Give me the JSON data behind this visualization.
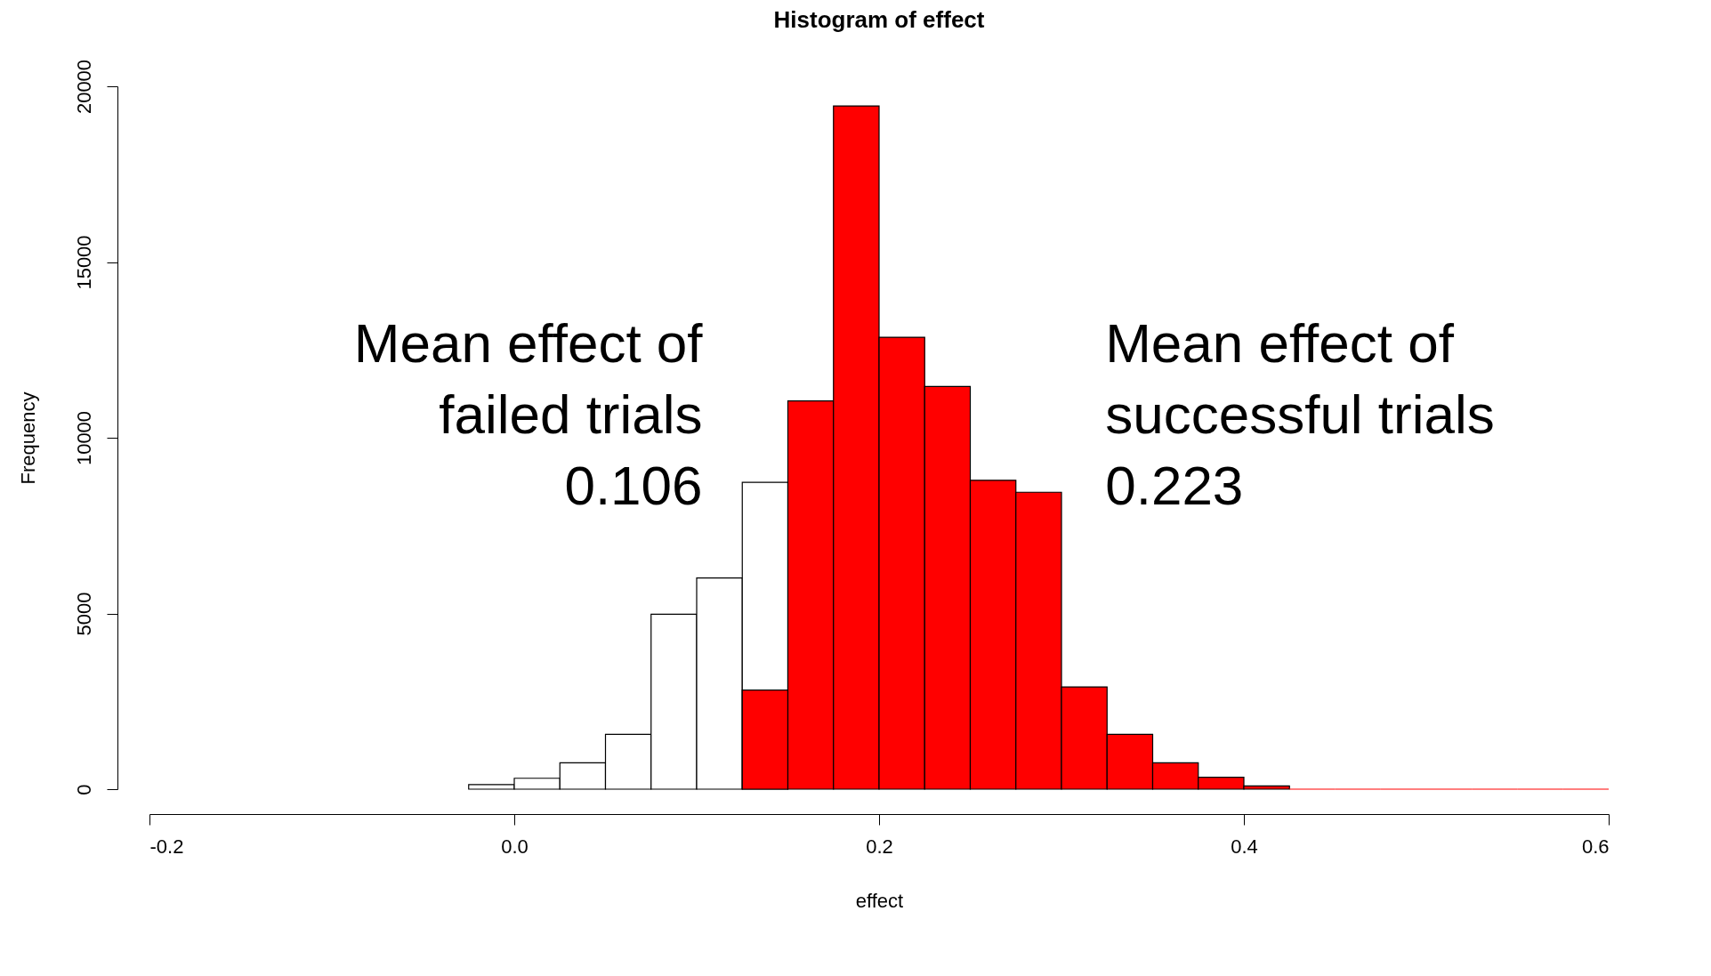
{
  "chart_data": {
    "type": "histogram",
    "title": "Histogram of effect",
    "xlabel": "effect",
    "ylabel": "Frequency",
    "bins": [
      -0.2,
      -0.175,
      -0.15,
      -0.125,
      -0.1,
      -0.075,
      -0.05,
      -0.025,
      0,
      0.025,
      0.05,
      0.075,
      0.1,
      0.125,
      0.15,
      0.175,
      0.2,
      0.225,
      0.25,
      0.275,
      0.3,
      0.325,
      0.35,
      0.375,
      0.4,
      0.425,
      0.45,
      0.475,
      0.5,
      0.525,
      0.55,
      0.575,
      0.6
    ],
    "series": [
      {
        "color": "#ffffff",
        "values": [
          0,
          0,
          0,
          0,
          0,
          0,
          0,
          130,
          310,
          750,
          1560,
          4980,
          6010,
          8730,
          null,
          null,
          null,
          null,
          null,
          null,
          null,
          null,
          null,
          null,
          null,
          null,
          null,
          null,
          null,
          null,
          null,
          null
        ]
      },
      {
        "color": "#ff0000",
        "values": [
          null,
          null,
          null,
          null,
          null,
          null,
          null,
          null,
          null,
          null,
          null,
          null,
          null,
          2820,
          11050,
          19440,
          12860,
          11460,
          8790,
          8450,
          2910,
          1560,
          750,
          340,
          90,
          0,
          0,
          0,
          0,
          0,
          0,
          0
        ]
      }
    ],
    "xlim": [
      -0.2,
      0.6
    ],
    "xticks": [
      -0.2,
      {
        "value": 0,
        "label": "0.0"
      },
      0.2,
      0.4,
      0.6
    ],
    "ylim": [
      0,
      20000
    ],
    "yticks": [
      0,
      5000,
      10000,
      15000,
      20000
    ],
    "annotations": [
      "Mean effect of\nfailed trials\n0.106",
      "Mean effect of\nsuccessful trials\n0.223"
    ],
    "grid": false
  }
}
